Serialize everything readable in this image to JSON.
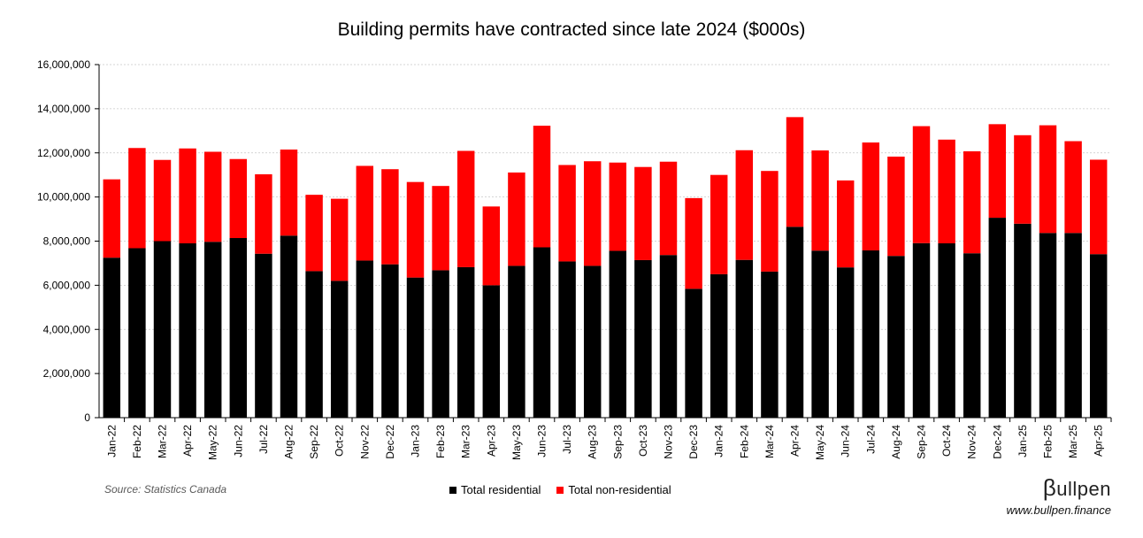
{
  "chart_data": {
    "type": "bar",
    "stacked": true,
    "title": "Building permits have contracted since late 2024 ($000s)",
    "categories": [
      "Jan-22",
      "Feb-22",
      "Mar-22",
      "Apr-22",
      "May-22",
      "Jun-22",
      "Jul-22",
      "Aug-22",
      "Sep-22",
      "Oct-22",
      "Nov-22",
      "Dec-22",
      "Jan-23",
      "Feb-23",
      "Mar-23",
      "Apr-23",
      "May-23",
      "Jun-23",
      "Jul-23",
      "Aug-23",
      "Sep-23",
      "Oct-23",
      "Nov-23",
      "Dec-23",
      "Jan-24",
      "Feb-24",
      "Mar-24",
      "Apr-24",
      "May-24",
      "Jun-24",
      "Jul-24",
      "Aug-24",
      "Sep-24",
      "Oct-24",
      "Nov-24",
      "Dec-24",
      "Jan-25",
      "Feb-25",
      "Mar-25",
      "Apr-25"
    ],
    "series": [
      {
        "name": "Total residential",
        "color": "#000000",
        "values": [
          7250000,
          7680000,
          8000000,
          7900000,
          7970000,
          8140000,
          7430000,
          8250000,
          6640000,
          6200000,
          7120000,
          6950000,
          6350000,
          6680000,
          6820000,
          6000000,
          6880000,
          7720000,
          7080000,
          6880000,
          7560000,
          7140000,
          7370000,
          5840000,
          6500000,
          7150000,
          6620000,
          8650000,
          7570000,
          6810000,
          7580000,
          7330000,
          7910000,
          7900000,
          7450000,
          9060000,
          8790000,
          8370000,
          8370000,
          7410000
        ]
      },
      {
        "name": "Total non-residential",
        "color": "#ff0000",
        "values": [
          3550000,
          4540000,
          3680000,
          4300000,
          4080000,
          3580000,
          3600000,
          3900000,
          3460000,
          3720000,
          4290000,
          4310000,
          4330000,
          3820000,
          5270000,
          3570000,
          4230000,
          5510000,
          4370000,
          4740000,
          4000000,
          4220000,
          4230000,
          4110000,
          4500000,
          4970000,
          4560000,
          4970000,
          4540000,
          3940000,
          4890000,
          4500000,
          5300000,
          4700000,
          4620000,
          4240000,
          4010000,
          4880000,
          4160000,
          4280000
        ]
      }
    ],
    "ylim": [
      0,
      16000000
    ],
    "yticks": [
      "0",
      "2,000,000",
      "4,000,000",
      "6,000,000",
      "8,000,000",
      "10,000,000",
      "12,000,000",
      "14,000,000",
      "16,000,000"
    ],
    "grid": true,
    "legend_position": "bottom"
  },
  "source": "Source: Statistics Canada",
  "brand": {
    "logo_beta": "β",
    "logo_text": "ullpen",
    "website": "www.bullpen.finance"
  }
}
